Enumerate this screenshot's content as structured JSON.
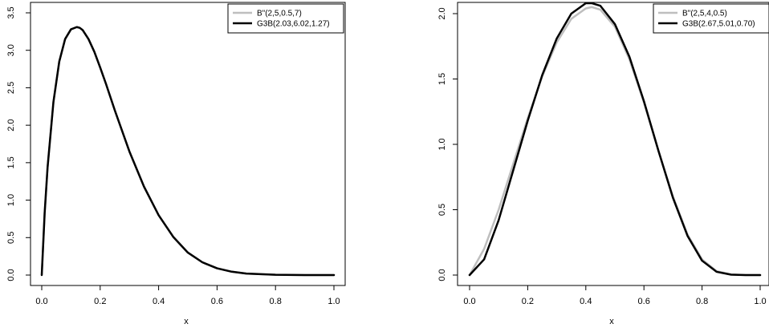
{
  "chart_data": [
    {
      "type": "line",
      "title": "",
      "xlabel": "x",
      "ylabel": "",
      "xlim": [
        0,
        1
      ],
      "ylim": [
        0,
        3.5
      ],
      "xticks": [
        "0.0",
        "0.2",
        "0.4",
        "0.6",
        "0.8",
        "1.0"
      ],
      "yticks": [
        "0.0",
        "0.5",
        "1.0",
        "1.5",
        "2.0",
        "2.5",
        "3.0",
        "3.5"
      ],
      "grid": false,
      "legend_position": "top-right",
      "series": [
        {
          "name": "B\"(2,5,0.5,7)",
          "color": "#bebebe",
          "x": [
            0,
            0.01,
            0.02,
            0.04,
            0.06,
            0.08,
            0.1,
            0.12,
            0.13,
            0.14,
            0.16,
            0.18,
            0.2,
            0.22,
            0.25,
            0.3,
            0.35,
            0.4,
            0.45,
            0.5,
            0.55,
            0.6,
            0.65,
            0.7,
            0.8,
            0.9,
            1.0
          ],
          "y": [
            0,
            0.83,
            1.44,
            2.31,
            2.85,
            3.15,
            3.28,
            3.31,
            3.3,
            3.27,
            3.15,
            2.98,
            2.77,
            2.55,
            2.2,
            1.65,
            1.18,
            0.8,
            0.51,
            0.3,
            0.17,
            0.09,
            0.045,
            0.02,
            0.004,
            0.0005,
            0
          ]
        },
        {
          "name": "G3B(2.03,6.02,1.27)",
          "color": "#000000",
          "x": [
            0,
            0.01,
            0.02,
            0.04,
            0.06,
            0.08,
            0.1,
            0.12,
            0.13,
            0.14,
            0.16,
            0.18,
            0.2,
            0.22,
            0.25,
            0.3,
            0.35,
            0.4,
            0.45,
            0.5,
            0.55,
            0.6,
            0.65,
            0.7,
            0.8,
            0.9,
            1.0
          ],
          "y": [
            0,
            0.83,
            1.44,
            2.31,
            2.85,
            3.15,
            3.28,
            3.31,
            3.3,
            3.27,
            3.15,
            2.98,
            2.77,
            2.55,
            2.2,
            1.65,
            1.18,
            0.8,
            0.51,
            0.3,
            0.17,
            0.09,
            0.045,
            0.02,
            0.004,
            0.0005,
            0
          ]
        }
      ]
    },
    {
      "type": "line",
      "title": "",
      "xlabel": "x",
      "ylabel": "",
      "xlim": [
        0,
        1
      ],
      "ylim": [
        0,
        2.0
      ],
      "xticks": [
        "0.0",
        "0.2",
        "0.4",
        "0.6",
        "0.8",
        "1.0"
      ],
      "yticks": [
        "0.0",
        "0.5",
        "1.0",
        "1.5",
        "2.0"
      ],
      "grid": false,
      "legend_position": "top-right",
      "series": [
        {
          "name": "B\"(2,5,4,0.5)",
          "color": "#bebebe",
          "x": [
            0,
            0.05,
            0.1,
            0.15,
            0.2,
            0.25,
            0.3,
            0.35,
            0.4,
            0.42,
            0.45,
            0.5,
            0.55,
            0.6,
            0.65,
            0.7,
            0.75,
            0.8,
            0.85,
            0.9,
            0.95,
            1.0
          ],
          "y": [
            0,
            0.2,
            0.5,
            0.85,
            1.2,
            1.52,
            1.78,
            1.96,
            2.04,
            2.05,
            2.03,
            1.9,
            1.65,
            1.32,
            0.95,
            0.6,
            0.31,
            0.12,
            0.03,
            0.005,
            0,
            0
          ]
        },
        {
          "name": "G3B(2.67,5.01,0.70)",
          "color": "#000000",
          "x": [
            0,
            0.05,
            0.1,
            0.15,
            0.2,
            0.25,
            0.3,
            0.35,
            0.4,
            0.42,
            0.45,
            0.5,
            0.55,
            0.6,
            0.65,
            0.7,
            0.75,
            0.8,
            0.85,
            0.9,
            0.95,
            1.0
          ],
          "y": [
            0,
            0.12,
            0.42,
            0.8,
            1.18,
            1.53,
            1.81,
            2.0,
            2.08,
            2.08,
            2.06,
            1.92,
            1.67,
            1.33,
            0.95,
            0.59,
            0.3,
            0.11,
            0.025,
            0.003,
            0,
            0
          ]
        }
      ]
    }
  ]
}
